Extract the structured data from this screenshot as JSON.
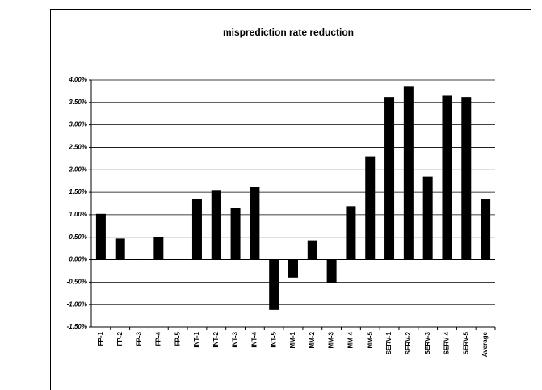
{
  "chart_data": {
    "type": "bar",
    "title": "misprediction rate reduction",
    "categories": [
      "FP-1",
      "FP-2",
      "FP-3",
      "FP-4",
      "FP-5",
      "INT-1",
      "INT-2",
      "INT-3",
      "INT-4",
      "INT-5",
      "MM-1",
      "MM-2",
      "MM-3",
      "MM-4",
      "MM-5",
      "SERV-1",
      "SERV-2",
      "SERV-3",
      "SERV-4",
      "SERV-5",
      "Average"
    ],
    "values": [
      1.02,
      0.47,
      0.01,
      0.5,
      0.01,
      1.35,
      1.55,
      1.15,
      1.62,
      -1.12,
      -0.4,
      0.43,
      -0.52,
      1.19,
      2.3,
      3.62,
      3.85,
      1.85,
      3.65,
      3.62,
      1.35
    ],
    "color": "#000000",
    "ylim": [
      -1.5,
      4.0
    ],
    "yticks": [
      {
        "value": -1.5,
        "label": "-1.50%"
      },
      {
        "value": -1.0,
        "label": "-1.00%"
      },
      {
        "value": -0.5,
        "label": "-0.50%"
      },
      {
        "value": 0.0,
        "label": "0.00%"
      },
      {
        "value": 0.5,
        "label": "0.50%"
      },
      {
        "value": 1.0,
        "label": "1.00%"
      },
      {
        "value": 1.5,
        "label": "1.50%"
      },
      {
        "value": 2.0,
        "label": "2.00%"
      },
      {
        "value": 2.5,
        "label": "2.50%"
      },
      {
        "value": 3.0,
        "label": "3.00%"
      },
      {
        "value": 3.5,
        "label": "3.50%"
      },
      {
        "value": 4.0,
        "label": "4.00%"
      }
    ],
    "grid": true
  }
}
